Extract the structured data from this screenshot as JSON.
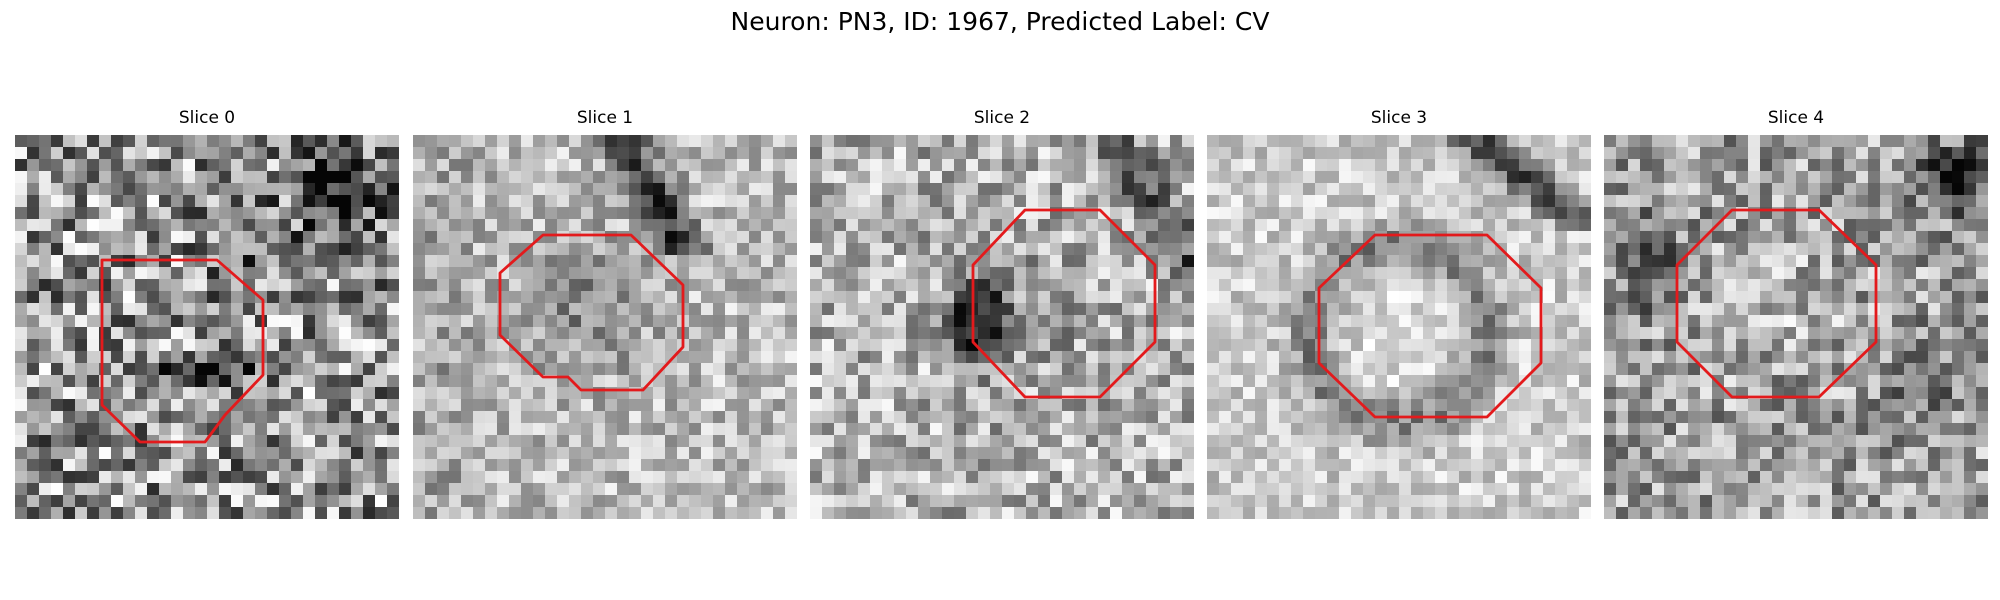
{
  "figure": {
    "title": "Neuron: PN3, ID: 1967, Predicted Label: CV",
    "contour_color": "#e31a1c"
  },
  "panels": [
    {
      "title": "Slice 0"
    },
    {
      "title": "Slice 1"
    },
    {
      "title": "Slice 2"
    },
    {
      "title": "Slice 3"
    },
    {
      "title": "Slice 4"
    }
  ]
}
